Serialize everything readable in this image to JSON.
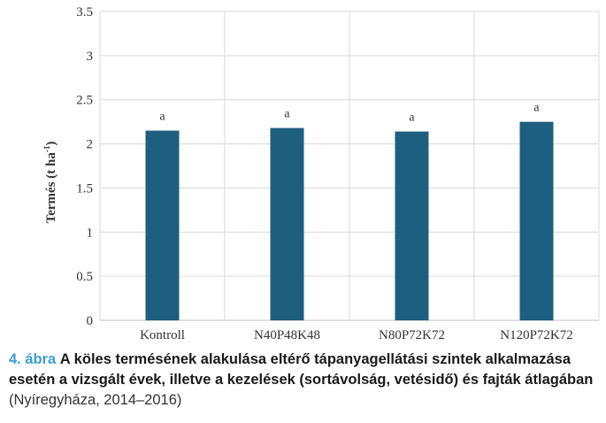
{
  "chart_data": {
    "type": "bar",
    "categories": [
      "Kontroll",
      "N40P48K48",
      "N80P72K72",
      "N120P72K72"
    ],
    "values": [
      2.15,
      2.18,
      2.14,
      2.25
    ],
    "data_labels": [
      "a",
      "a",
      "a",
      "a"
    ],
    "ylabel": "Termés (t ha⁻¹)",
    "ylabel_main": "Termés (t ha",
    "ylabel_sup": "-1",
    "ylabel_close": ")",
    "ylim": [
      0,
      3.5
    ],
    "yticks": [
      0,
      0.5,
      1,
      1.5,
      2,
      2.5,
      3,
      3.5
    ],
    "ytick_labels": [
      "0",
      "0.5",
      "1",
      "1.5",
      "2",
      "2.5",
      "3",
      "3.5"
    ],
    "grid": true,
    "colors": {
      "bar": "#1e5f80",
      "grid": "#d9d9d9",
      "axis": "#bfbfbf"
    }
  },
  "caption": {
    "figure_number": "4. ábra",
    "text": "A köles termésének alakulása eltérő tápanyagellátási szintek alkalmazása esetén a vizsgált évek, illetve a kezelések (sortávolság, vetésidő) és fajták átlagában",
    "source": "(Nyíregyháza, 2014–2016)"
  }
}
